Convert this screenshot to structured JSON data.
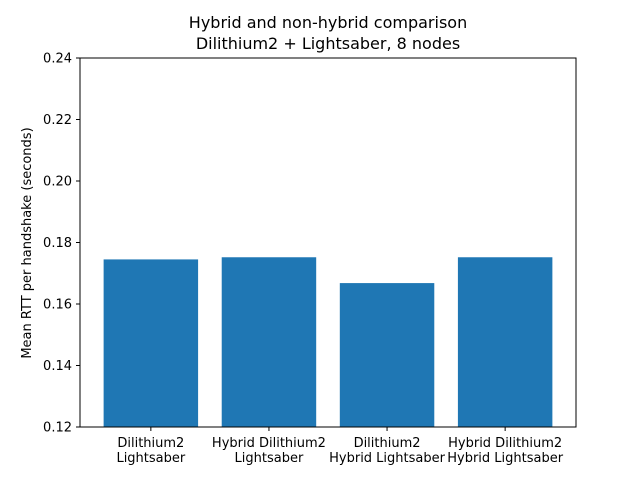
{
  "chart_data": {
    "type": "bar",
    "title_lines": [
      "Hybrid and non-hybrid comparison",
      "Dilithium2 + Lightsaber, 8 nodes"
    ],
    "xlabel": "",
    "ylabel": "Mean RTT per handshake (seconds)",
    "categories": [
      [
        "Dilithium2",
        "Lightsaber"
      ],
      [
        "Hybrid Dilithium2",
        "Lightsaber"
      ],
      [
        "Dilithium2",
        "Hybrid Lightsaber"
      ],
      [
        "Hybrid Dilithium2",
        "Hybrid Lightsaber"
      ]
    ],
    "values": [
      0.1745,
      0.1752,
      0.1668,
      0.1752
    ],
    "ylim": [
      0.12,
      0.24
    ],
    "yticks": [
      "0.12",
      "0.14",
      "0.16",
      "0.18",
      "0.20",
      "0.22",
      "0.24"
    ],
    "bar_color": "#1f77b4",
    "grid": false,
    "legend": "none"
  }
}
